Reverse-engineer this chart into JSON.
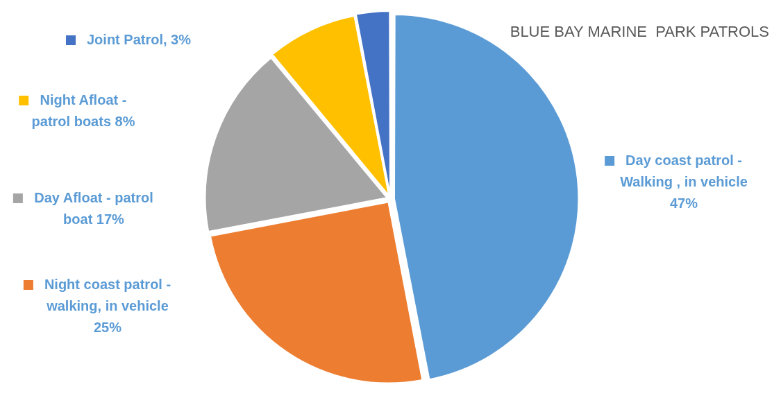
{
  "chart_data": {
    "type": "pie",
    "title": "BLUE BAY MARINE  PARK PATROLS",
    "categories": [
      "Day coast patrol - Walking , in vehicle",
      "Night coast patrol - walking, in vehicle",
      "Day Afloat - patrol boat",
      "Night Afloat - patrol boats",
      "Joint Patrol"
    ],
    "values": [
      47,
      25,
      17,
      8,
      3
    ],
    "value_labels": [
      "47%",
      "25%",
      "17%",
      "8%",
      "3%"
    ],
    "colors": [
      "#5b9bd5",
      "#ed7d31",
      "#a5a5a5",
      "#ffc000",
      "#4472c4"
    ],
    "legend": "left"
  }
}
